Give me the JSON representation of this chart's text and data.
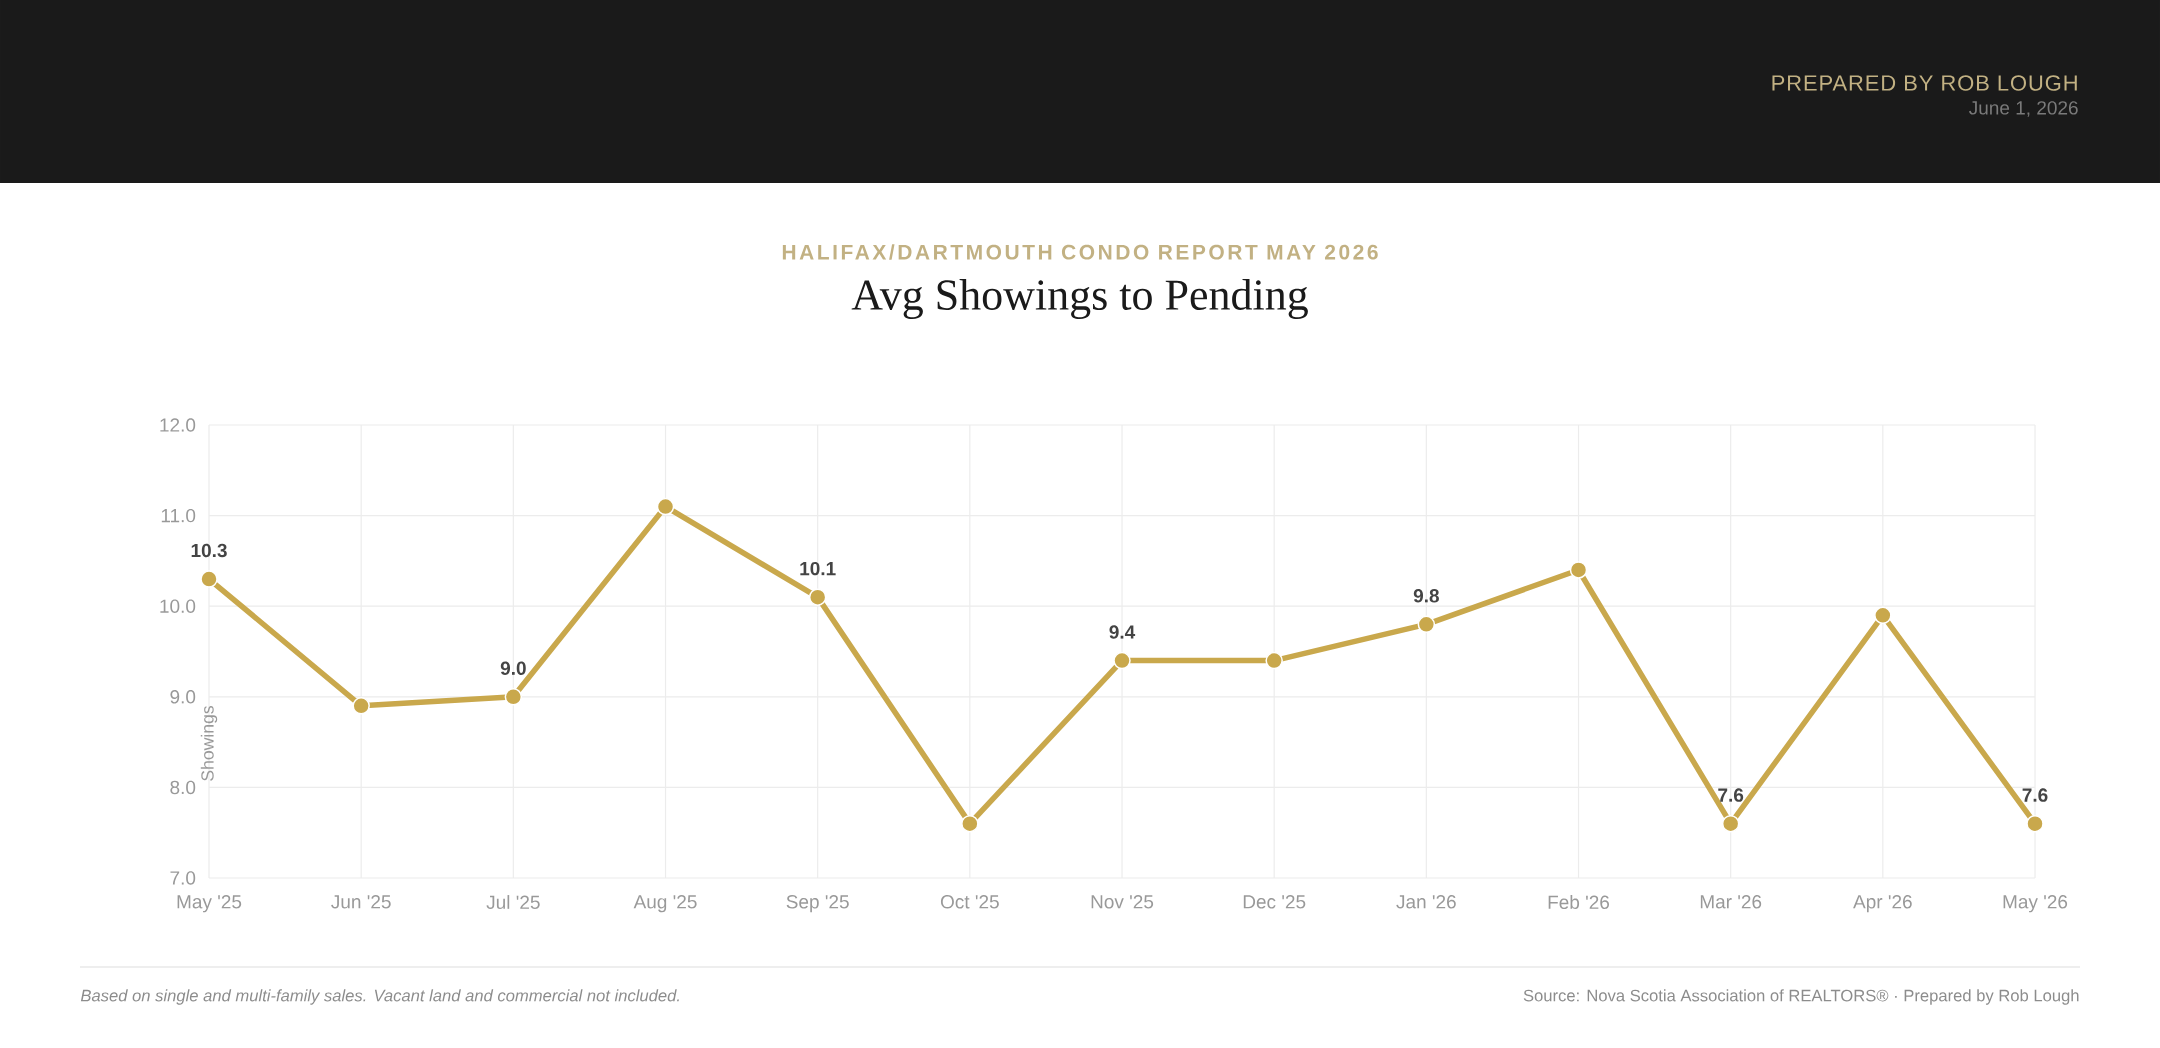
{
  "chart_data": {
    "type": "line",
    "title": "Avg Showings to Pending",
    "subtitle": "HALIFAX/DARTMOUTH CONDO REPORT MAY 2026",
    "ylabel": "Showings",
    "annotations": [
      "PREPARED BY ROB LOUGH",
      "June 1, 2026",
      "Based on single and multi-family sales. Vacant land and commercial not included.",
      "Source: Nova Scotia Association of REALTORS® · Prepared by Rob Lough"
    ],
    "categories": [
      "May '25",
      "Jun '25",
      "Jul '25",
      "Aug '25",
      "Sep '25",
      "Oct '25",
      "Nov '25",
      "Dec '25",
      "Jan '26",
      "Feb '26",
      "Mar '26",
      "Apr '26",
      "May '26"
    ],
    "values": [
      10.3,
      8.9,
      9.0,
      11.1,
      10.1,
      7.6,
      9.4,
      9.4,
      9.8,
      10.4,
      7.6,
      9.9,
      7.6
    ],
    "value_labels": [
      "10.3",
      null,
      "9.0",
      null,
      "10.1",
      null,
      "9.4",
      null,
      "9.8",
      null,
      "7.6",
      null,
      "7.6"
    ],
    "color": "#c9a84c",
    "ylim": [
      7,
      12
    ],
    "yticks": [
      {
        "value": 7,
        "label": "7.0"
      },
      {
        "value": 8,
        "label": "8.0"
      },
      {
        "value": 9,
        "label": "9.0"
      },
      {
        "value": 10,
        "label": "10.0"
      },
      {
        "value": 11,
        "label": "11.0"
      },
      {
        "value": 12,
        "label": "12.0"
      }
    ],
    "grid": true,
    "marker": "circle",
    "line_style": "solid"
  }
}
